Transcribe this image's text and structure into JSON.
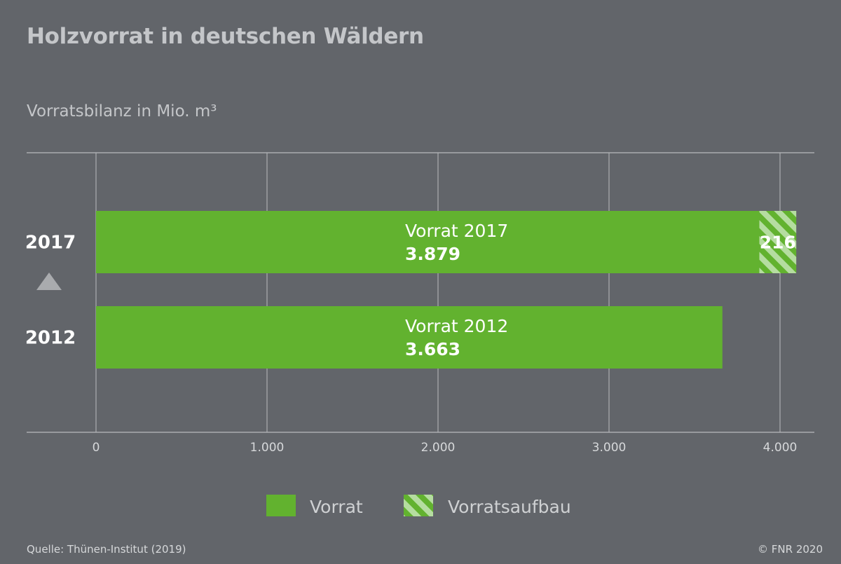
{
  "colors": {
    "background": "#62656a",
    "vorrat": "#62b22f",
    "hatch_light": "#b5dda0",
    "hatch_dark": "#62b22f",
    "grid": "#b9bbbe",
    "text": "#ffffff",
    "muted_text": "#c4c6c9"
  },
  "chart_data": {
    "type": "bar",
    "orientation": "horizontal",
    "title": "Holzvorrat in deutschen Wäldern",
    "subtitle": "Vorratsbilanz in Mio. m³",
    "xlim": [
      0,
      4000
    ],
    "x_ticks": [
      0,
      1000,
      2000,
      3000,
      4000
    ],
    "x_tick_labels": [
      "0",
      "1.000",
      "2.000",
      "3.000",
      "4.000"
    ],
    "grid": true,
    "categories": [
      "2017",
      "2012"
    ],
    "series": [
      {
        "name": "Vorrat",
        "values": [
          3879,
          3663
        ],
        "style": "solid"
      },
      {
        "name": "Vorratsaufbau",
        "values": [
          216,
          0
        ],
        "style": "hatched"
      }
    ],
    "bar_labels": [
      {
        "title": "Vorrat 2017",
        "value": "3.879"
      },
      {
        "title": "Vorrat 2012",
        "value": "3.663"
      }
    ],
    "segment_labels": [
      "216",
      ""
    ],
    "trend_marker": "triangle-up",
    "legend_position": "bottom-center"
  },
  "footer": {
    "source": "Quelle: Thünen-Institut (2019)",
    "copyright": "© FNR 2020"
  }
}
